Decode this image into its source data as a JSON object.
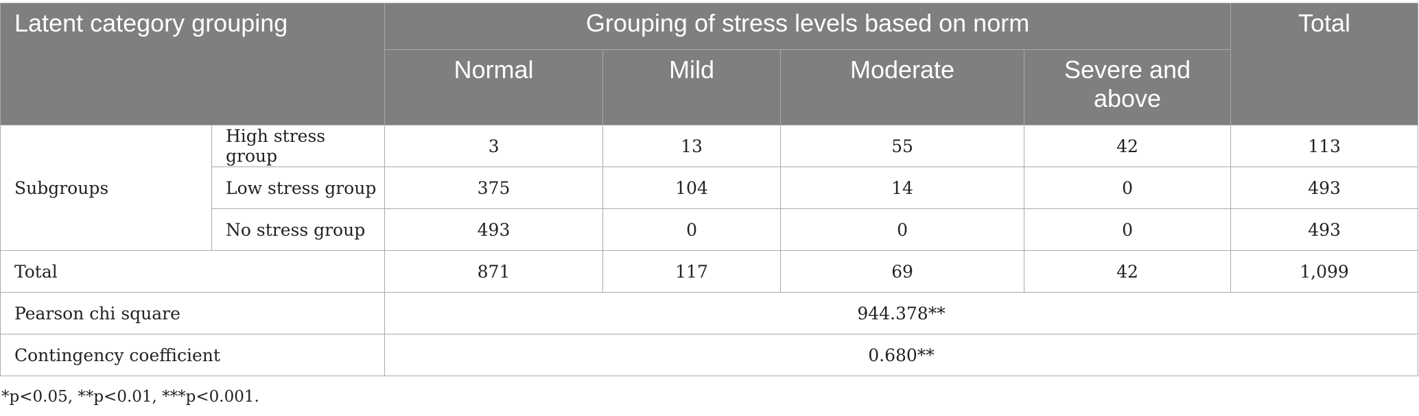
{
  "header": {
    "latent": "Latent category grouping",
    "grouping": "Grouping of stress levels based on norm",
    "total": "Total",
    "levels": [
      "Normal",
      "Mild",
      "Moderate",
      "Severe and above"
    ]
  },
  "subgroups_label": "Subgroups",
  "rows": [
    {
      "label": "High stress group",
      "values": [
        "3",
        "13",
        "55",
        "42",
        "113"
      ]
    },
    {
      "label": "Low stress group",
      "values": [
        "375",
        "104",
        "14",
        "0",
        "493"
      ]
    },
    {
      "label": "No stress group",
      "values": [
        "493",
        "0",
        "0",
        "0",
        "493"
      ]
    }
  ],
  "total_row": {
    "label": "Total",
    "values": [
      "871",
      "117",
      "69",
      "42",
      "1,099"
    ]
  },
  "pearson": {
    "label": "Pearson chi square",
    "value": "944.378**"
  },
  "contingency": {
    "label": "Contingency coefficient",
    "value": "0.680**"
  },
  "footnote": "*p<0.05, **p<0.01, ***p<0.001."
}
